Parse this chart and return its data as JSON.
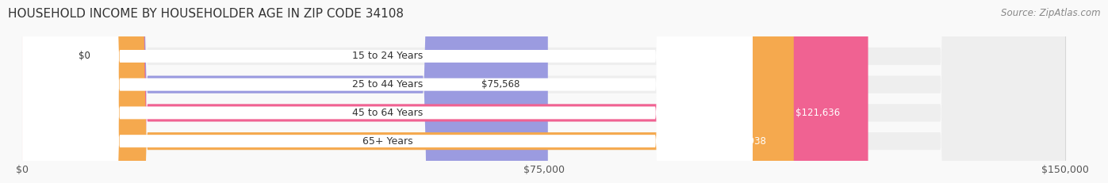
{
  "title": "HOUSEHOLD INCOME BY HOUSEHOLDER AGE IN ZIP CODE 34108",
  "source": "Source: ZipAtlas.com",
  "categories": [
    "15 to 24 Years",
    "25 to 44 Years",
    "45 to 64 Years",
    "65+ Years"
  ],
  "values": [
    0,
    75568,
    121636,
    110938
  ],
  "bar_colors": [
    "#5ECFBF",
    "#9B9BE0",
    "#F06292",
    "#F5A94E"
  ],
  "label_colors": [
    "#333333",
    "#333333",
    "#ffffff",
    "#ffffff"
  ],
  "max_value": 150000,
  "xticks": [
    0,
    75000,
    150000
  ],
  "xtick_labels": [
    "$0",
    "$75,000",
    "$150,000"
  ],
  "value_labels": [
    "$0",
    "$75,568",
    "$121,636",
    "$110,938"
  ],
  "bg_color": "#f9f9f9",
  "bar_bg_color": "#eeeeee",
  "bar_height": 0.62,
  "title_fontsize": 11,
  "source_fontsize": 8.5,
  "label_fontsize": 9,
  "tick_fontsize": 9,
  "value_fontsize": 8.5
}
